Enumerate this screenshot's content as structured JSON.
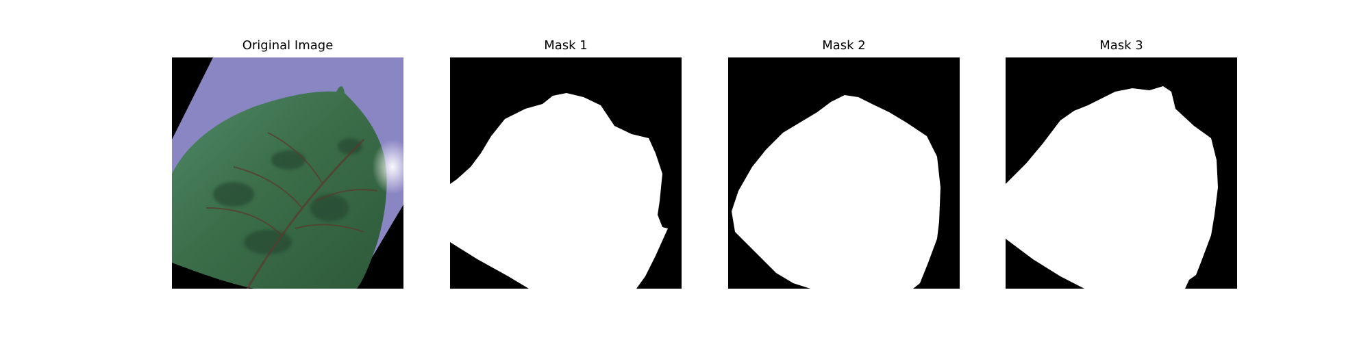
{
  "panels": [
    {
      "title": "Original Image"
    },
    {
      "title": "Mask 1"
    },
    {
      "title": "Mask 2"
    },
    {
      "title": "Mask 3"
    }
  ],
  "colors": {
    "background": "#ffffff",
    "mask_background": "#000000",
    "mask_foreground": "#ffffff",
    "leaf_dark": "#2d5a3a",
    "leaf_light": "#4f8a6a",
    "tray": "#8a86c4",
    "vein": "#5a3a2e"
  }
}
